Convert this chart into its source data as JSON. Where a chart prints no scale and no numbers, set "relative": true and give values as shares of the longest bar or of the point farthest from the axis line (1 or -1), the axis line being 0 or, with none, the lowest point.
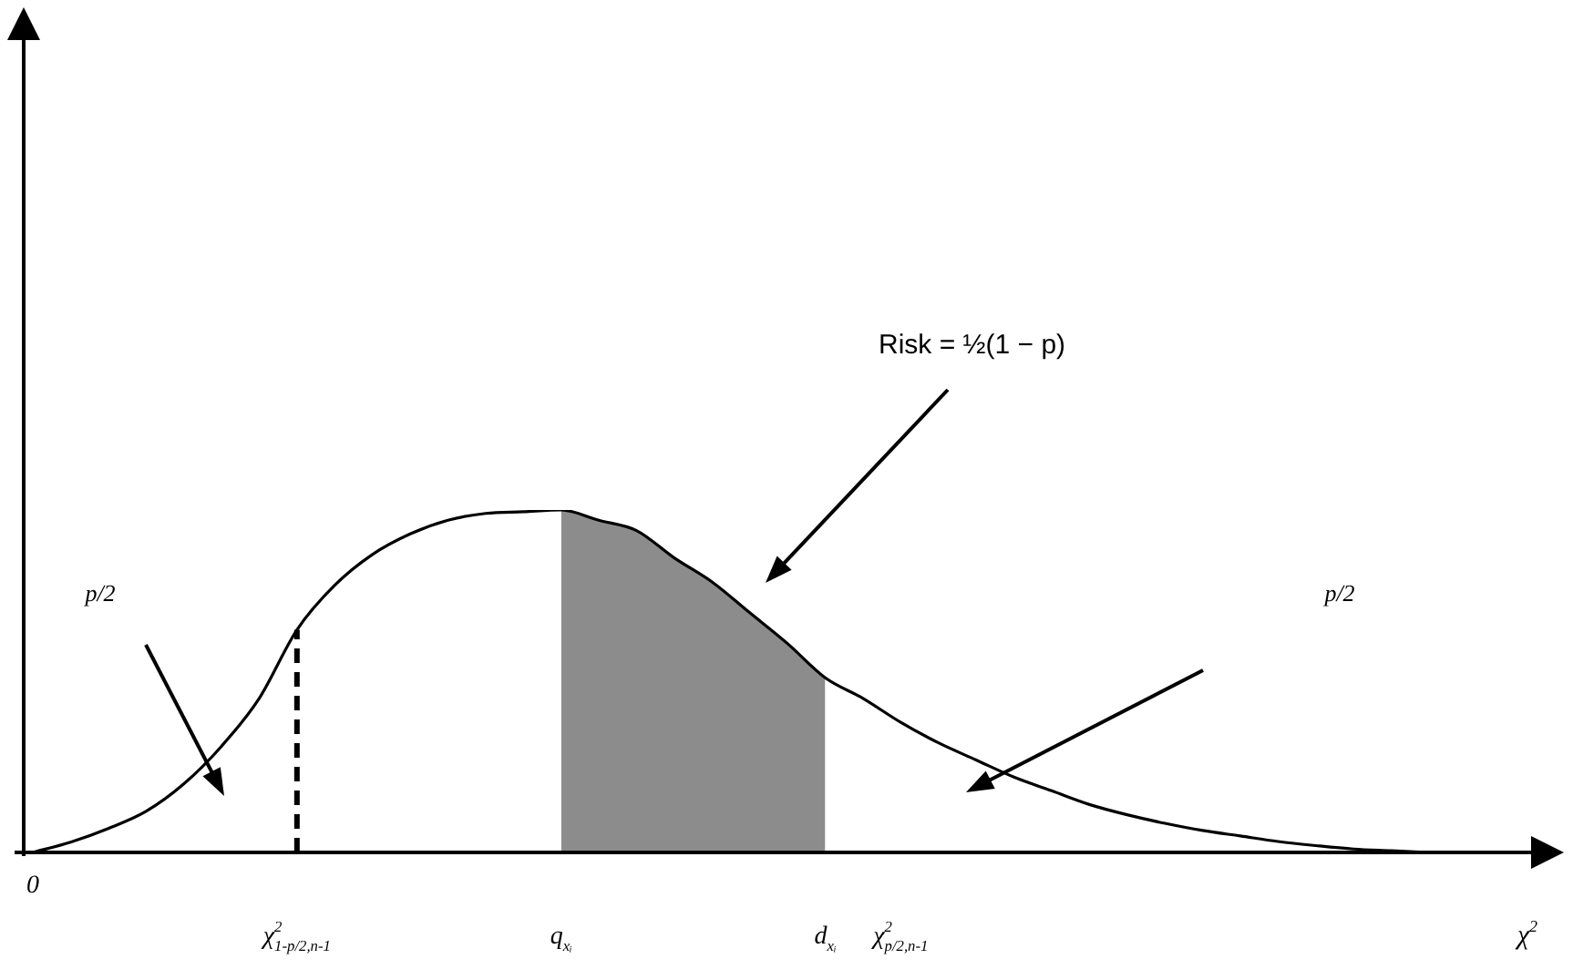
{
  "chart_data": {
    "type": "line",
    "relative": true,
    "xlabel": "χ$^{2}$",
    "categories": [
      "0",
      null,
      null,
      null,
      null,
      null,
      null,
      "χ$^{2}$$_{1-p/2,n-1}$",
      null,
      null,
      null,
      null,
      null,
      null,
      "q$_{xᵢ}$",
      null,
      null,
      null,
      null,
      null,
      null,
      "d$_{xᵢ}$",
      null,
      "χ$^{2}$$_{p/2,n-1}$",
      null,
      null,
      null,
      null,
      null,
      null,
      null,
      null,
      null,
      null,
      null,
      null,
      null,
      null
    ],
    "series": [
      {
        "color": "#000000",
        "values": [
          0,
          0.03,
          0.07,
          0.12,
          0.2,
          0.31,
          0.45,
          0.65,
          0.78,
          0.87,
          0.93,
          0.97,
          0.99,
          0.995,
          1,
          0.97,
          0.94,
          0.86,
          0.79,
          0.7,
          0.61,
          0.51,
          0.45,
          0.38,
          0.32,
          0.27,
          0.22,
          0.18,
          0.14,
          0.11,
          0.085,
          0.064,
          0.048,
          0.032,
          0.02,
          0.01,
          0.005,
          0
        ]
      },
      {
        "type": "area",
        "color": "#8c8c8c",
        "values": [
          null,
          null,
          null,
          null,
          null,
          null,
          null,
          null,
          null,
          null,
          null,
          null,
          null,
          null,
          1,
          0.97,
          0.94,
          0.86,
          0.79,
          0.7,
          0.61,
          0.51,
          null,
          null,
          null,
          null,
          null,
          null,
          null,
          null,
          null,
          null,
          null,
          null,
          null,
          null,
          null,
          null
        ]
      }
    ],
    "ref_lines": [
      {
        "axis": "x",
        "value": "χ$^{2}$$_{1-p/2,n-1}$",
        "line_style": "dashed",
        "color": "#000000"
      }
    ],
    "annotations": [
      "Risk = ½(1 − p)",
      "p/2",
      "p/2"
    ],
    "legend": false,
    "grid": false,
    "marker": "none",
    "line_style": "solid",
    "tick_labels": "x"
  }
}
